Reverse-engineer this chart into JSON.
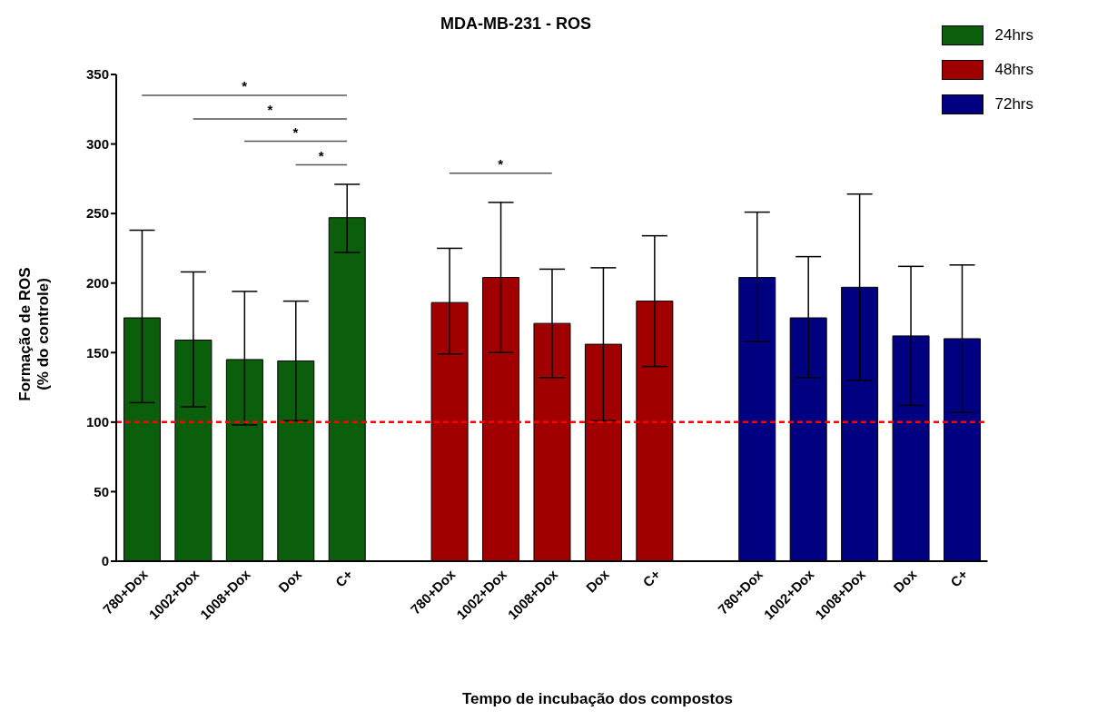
{
  "chart_data": {
    "type": "bar",
    "title": "MDA-MB-231 - ROS",
    "xlabel": "Tempo de incubação dos compostos",
    "ylabel": "Formação de ROS\n(% do controle)",
    "categories": [
      "780+Dox",
      "1002+Dox",
      "1008+Dox",
      "Dox",
      "C+",
      null,
      "780+Dox",
      "1002+Dox",
      "1008+Dox",
      "Dox",
      "C+",
      null,
      "780+Dox",
      "1002+Dox",
      "1008+Dox",
      "Dox",
      "C+"
    ],
    "series": [
      {
        "name": "24hrs",
        "color": "#0b5e0b",
        "values": [
          175,
          159,
          145,
          144,
          247,
          null,
          null,
          null,
          null,
          null,
          null,
          null,
          null,
          null,
          null,
          null,
          null
        ],
        "errors": [
          [
            114,
            238
          ],
          [
            111,
            208
          ],
          [
            98,
            194
          ],
          [
            101,
            187
          ],
          [
            222,
            271
          ],
          null,
          null,
          null,
          null,
          null,
          null,
          null,
          null,
          null,
          null,
          null,
          null
        ]
      },
      {
        "name": "48hrs",
        "color": "#a00000",
        "values": [
          null,
          null,
          null,
          null,
          null,
          null,
          186,
          204,
          171,
          156,
          187,
          null,
          null,
          null,
          null,
          null,
          null
        ],
        "errors": [
          null,
          null,
          null,
          null,
          null,
          null,
          [
            149,
            225
          ],
          [
            150,
            258
          ],
          [
            132,
            210
          ],
          [
            101,
            211
          ],
          [
            140,
            234
          ],
          null,
          null,
          null,
          null,
          null,
          null
        ]
      },
      {
        "name": "72hrs",
        "color": "#000080",
        "values": [
          null,
          null,
          null,
          null,
          null,
          null,
          null,
          null,
          null,
          null,
          null,
          null,
          204,
          175,
          197,
          162,
          160
        ],
        "errors": [
          null,
          null,
          null,
          null,
          null,
          null,
          null,
          null,
          null,
          null,
          null,
          null,
          [
            158,
            251
          ],
          [
            132,
            219
          ],
          [
            130,
            264
          ],
          [
            112,
            212
          ],
          [
            107,
            213
          ]
        ]
      }
    ],
    "ylim": [
      0,
      350
    ],
    "yticks": [
      0,
      50,
      100,
      150,
      200,
      250,
      300,
      350
    ],
    "legend": "top right",
    "ref_lines": [
      {
        "axis": "y",
        "value": 100,
        "color": "#ff0000",
        "line_style": "dashed"
      }
    ],
    "annotations": [
      "*",
      "*",
      "*",
      "*",
      "*"
    ]
  }
}
